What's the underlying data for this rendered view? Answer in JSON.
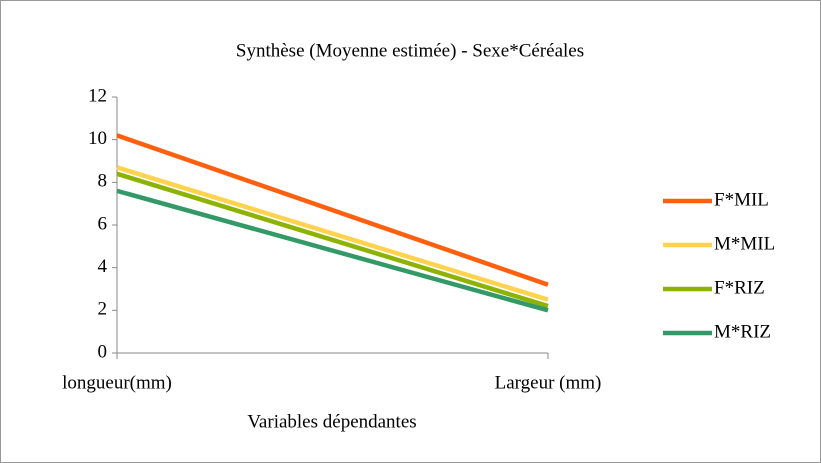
{
  "chart_data": {
    "type": "line",
    "title": "Synthèse (Moyenne estimée) - Sexe*Céréales",
    "x_label": "Variables dépendantes",
    "categories": [
      "longueur(mm)",
      "Largeur (mm)"
    ],
    "series": [
      {
        "name": "F*MIL",
        "color": "#ff6010",
        "values": [
          10.2,
          3.2
        ]
      },
      {
        "name": "M*MIL",
        "color": "#ffd34d",
        "values": [
          8.7,
          2.5
        ]
      },
      {
        "name": "F*RIZ",
        "color": "#8db300",
        "values": [
          8.4,
          2.2
        ]
      },
      {
        "name": "M*RIZ",
        "color": "#339966",
        "values": [
          7.6,
          2.0
        ]
      }
    ],
    "ylim": [
      0,
      12
    ],
    "yticks": [
      0,
      2,
      4,
      6,
      8,
      10,
      12
    ],
    "grid": false,
    "legend": "right"
  }
}
